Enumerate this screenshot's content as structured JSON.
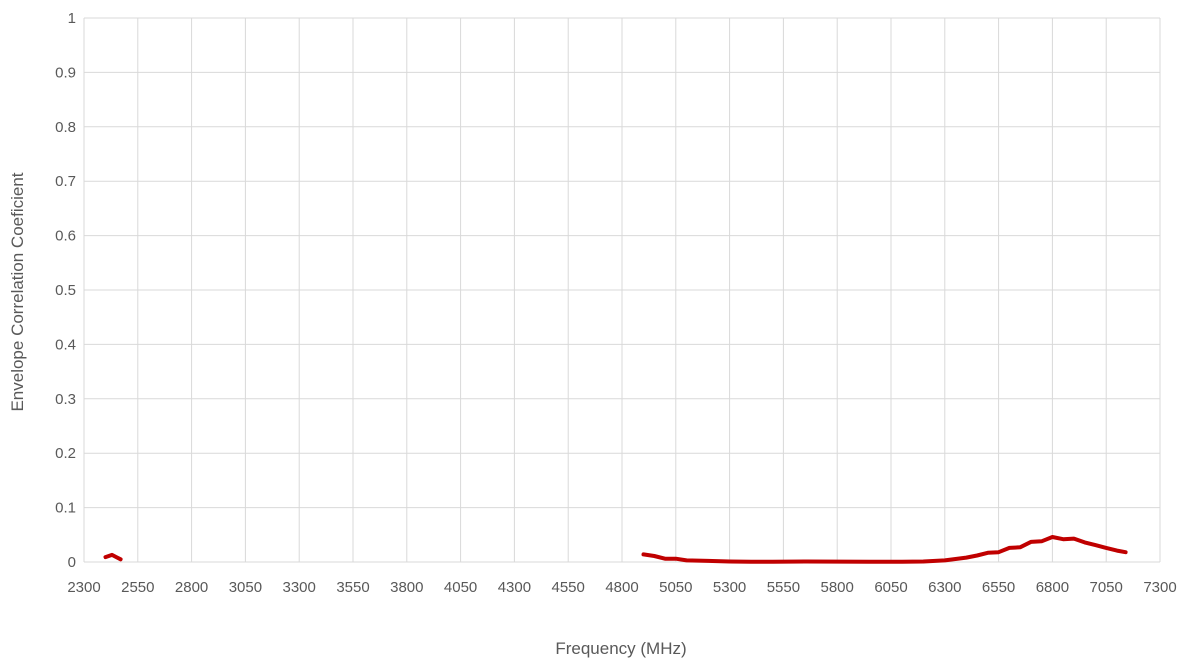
{
  "chart_data": {
    "type": "line",
    "title": "",
    "xlabel": "Frequency (MHz)",
    "ylabel": "Envelope Correlation Coeficient",
    "xlim": [
      2300,
      7300
    ],
    "ylim": [
      0,
      1
    ],
    "grid": true,
    "legend": "none",
    "x_ticks": [
      "2300",
      "2550",
      "2800",
      "3050",
      "3300",
      "3550",
      "3800",
      "4050",
      "4300",
      "4550",
      "4800",
      "5050",
      "5300",
      "5550",
      "5800",
      "6050",
      "6300",
      "6550",
      "6800",
      "7050",
      "7300"
    ],
    "y_ticks": [
      "0",
      "0.1",
      "0.2",
      "0.3",
      "0.4",
      "0.5",
      "0.6",
      "0.7",
      "0.8",
      "0.9",
      "1"
    ],
    "series": [
      {
        "color": "#c00000",
        "segments": [
          [
            [
              2400,
              0.009
            ],
            [
              2430,
              0.013
            ],
            [
              2450,
              0.009
            ],
            [
              2470,
              0.005
            ]
          ],
          [
            [
              4900,
              0.014
            ],
            [
              4950,
              0.011
            ],
            [
              5000,
              0.006
            ],
            [
              5050,
              0.006
            ],
            [
              5100,
              0.003
            ],
            [
              5200,
              0.002
            ],
            [
              5300,
              0.001
            ],
            [
              5400,
              0.0005
            ],
            [
              5500,
              0.0005
            ],
            [
              5650,
              0.001
            ],
            [
              5800,
              0.0008
            ],
            [
              5950,
              0.0005
            ],
            [
              6100,
              0.0005
            ],
            [
              6200,
              0.001
            ],
            [
              6300,
              0.003
            ],
            [
              6400,
              0.008
            ],
            [
              6450,
              0.012
            ],
            [
              6500,
              0.017
            ],
            [
              6550,
              0.018
            ],
            [
              6600,
              0.026
            ],
            [
              6650,
              0.027
            ],
            [
              6700,
              0.037
            ],
            [
              6750,
              0.038
            ],
            [
              6800,
              0.046
            ],
            [
              6850,
              0.042
            ],
            [
              6900,
              0.043
            ],
            [
              6950,
              0.036
            ],
            [
              7000,
              0.031
            ],
            [
              7050,
              0.026
            ],
            [
              7100,
              0.021
            ],
            [
              7140,
              0.018
            ]
          ]
        ]
      }
    ]
  }
}
